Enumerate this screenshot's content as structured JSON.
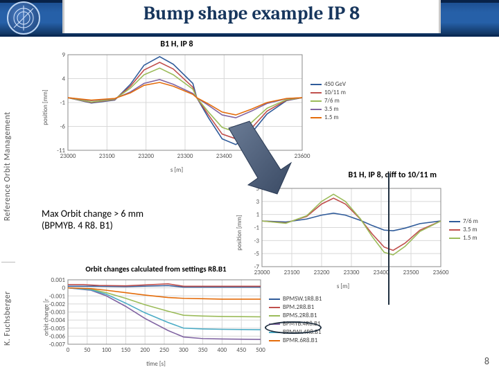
{
  "title": "Bump shape example IP 8",
  "side_top": "Reference Orbit Management",
  "side_bottom": "K. Fuchsberger",
  "page_no": "8",
  "note_line1": "Max Orbit change > 6 mm",
  "note_line2": "(BPMYB. 4 R8. B1)",
  "chart1": {
    "title": "B1 H, IP 8",
    "ylabel": "position [mm]",
    "xlabel": "s [m]",
    "xlim": [
      23000,
      23600
    ],
    "xtick_step": 100,
    "ylim": [
      -11,
      9
    ],
    "yticks": [
      -11,
      -6,
      -1,
      4,
      9
    ],
    "grid_color": "#d8d8d8",
    "bg": "#ffffff",
    "title_fontsize": 12,
    "tick_fontsize": 9,
    "series": [
      {
        "name": "450 GeV",
        "color": "#2f5b9a",
        "pts": [
          [
            23000,
            0
          ],
          [
            23060,
            -1.1
          ],
          [
            23120,
            -0.5
          ],
          [
            23160,
            2.8
          ],
          [
            23195,
            6.8
          ],
          [
            23235,
            8.6
          ],
          [
            23270,
            7.0
          ],
          [
            23320,
            3.0
          ],
          [
            23330,
            0
          ],
          [
            23360,
            -4.2
          ],
          [
            23395,
            -8.6
          ],
          [
            23430,
            -9.8
          ],
          [
            23470,
            -7.4
          ],
          [
            23510,
            -3.4
          ],
          [
            23560,
            -0.6
          ],
          [
            23600,
            0
          ]
        ]
      },
      {
        "name": "10/11 m",
        "color": "#c0504d",
        "pts": [
          [
            23000,
            0
          ],
          [
            23060,
            -1.0
          ],
          [
            23120,
            -0.4
          ],
          [
            23160,
            2.4
          ],
          [
            23195,
            5.8
          ],
          [
            23235,
            7.4
          ],
          [
            23270,
            6.0
          ],
          [
            23320,
            2.2
          ],
          [
            23330,
            0
          ],
          [
            23360,
            -3.6
          ],
          [
            23395,
            -7.6
          ],
          [
            23430,
            -8.6
          ],
          [
            23470,
            -6.4
          ],
          [
            23510,
            -2.8
          ],
          [
            23560,
            -0.5
          ],
          [
            23600,
            0
          ]
        ]
      },
      {
        "name": "7/6 m",
        "color": "#9bbb59",
        "pts": [
          [
            23000,
            0
          ],
          [
            23060,
            -0.9
          ],
          [
            23120,
            -0.3
          ],
          [
            23160,
            2.0
          ],
          [
            23195,
            4.8
          ],
          [
            23235,
            6.2
          ],
          [
            23270,
            4.8
          ],
          [
            23320,
            1.8
          ],
          [
            23330,
            0
          ],
          [
            23360,
            -3.0
          ],
          [
            23395,
            -6.2
          ],
          [
            23430,
            -7.2
          ],
          [
            23470,
            -5.2
          ],
          [
            23510,
            -2.2
          ],
          [
            23560,
            -0.4
          ],
          [
            23600,
            0
          ]
        ]
      },
      {
        "name": "3.5 m",
        "color": "#8064a2",
        "pts": [
          [
            23000,
            0
          ],
          [
            23060,
            -0.6
          ],
          [
            23120,
            -0.2
          ],
          [
            23160,
            1.2
          ],
          [
            23195,
            3.0
          ],
          [
            23235,
            3.8
          ],
          [
            23270,
            2.8
          ],
          [
            23320,
            0.9
          ],
          [
            23330,
            0
          ],
          [
            23360,
            -1.6
          ],
          [
            23395,
            -3.6
          ],
          [
            23430,
            -4.2
          ],
          [
            23470,
            -2.8
          ],
          [
            23510,
            -1.2
          ],
          [
            23560,
            -0.2
          ],
          [
            23600,
            0
          ]
        ]
      },
      {
        "name": "1.5 m",
        "color": "#e46c0a",
        "pts": [
          [
            23000,
            0
          ],
          [
            23060,
            -0.5
          ],
          [
            23120,
            -0.15
          ],
          [
            23160,
            1.0
          ],
          [
            23195,
            2.6
          ],
          [
            23235,
            3.2
          ],
          [
            23270,
            2.4
          ],
          [
            23320,
            0.7
          ],
          [
            23330,
            0
          ],
          [
            23360,
            -1.3
          ],
          [
            23395,
            -3.0
          ],
          [
            23430,
            -3.6
          ],
          [
            23470,
            -2.4
          ],
          [
            23510,
            -1.0
          ],
          [
            23560,
            -0.15
          ],
          [
            23600,
            0
          ]
        ]
      }
    ]
  },
  "chart2": {
    "title": "B1 H, IP 8, diff to 10/11 m",
    "ylabel": "position [mm]",
    "xlabel": "s [m]",
    "xlim": [
      23000,
      23600
    ],
    "xtick_step": 100,
    "ylim": [
      -7,
      5
    ],
    "yticks": [
      -7,
      -5,
      -3,
      -1,
      1,
      3,
      5
    ],
    "grid_color": "#d8d8d8",
    "series": [
      {
        "name": "7/6 m",
        "color": "#2f5b9a",
        "pts": [
          [
            23000,
            0
          ],
          [
            23080,
            -0.15
          ],
          [
            23150,
            0.3
          ],
          [
            23200,
            0.9
          ],
          [
            23240,
            1.2
          ],
          [
            23280,
            0.9
          ],
          [
            23330,
            0.1
          ],
          [
            23370,
            -0.7
          ],
          [
            23410,
            -1.4
          ],
          [
            23440,
            -1.5
          ],
          [
            23480,
            -1.1
          ],
          [
            23530,
            -0.4
          ],
          [
            23600,
            0
          ]
        ]
      },
      {
        "name": "3.5 m",
        "color": "#c0504d",
        "pts": [
          [
            23000,
            0
          ],
          [
            23080,
            -0.3
          ],
          [
            23150,
            0.7
          ],
          [
            23200,
            2.6
          ],
          [
            23240,
            3.5
          ],
          [
            23280,
            2.6
          ],
          [
            23330,
            0.3
          ],
          [
            23370,
            -2.0
          ],
          [
            23410,
            -4.0
          ],
          [
            23440,
            -4.5
          ],
          [
            23480,
            -3.4
          ],
          [
            23530,
            -1.4
          ],
          [
            23600,
            0
          ]
        ]
      },
      {
        "name": "1.5 m",
        "color": "#9bbb59",
        "pts": [
          [
            23000,
            0
          ],
          [
            23080,
            -0.35
          ],
          [
            23150,
            0.8
          ],
          [
            23200,
            3.0
          ],
          [
            23240,
            4.1
          ],
          [
            23280,
            3.0
          ],
          [
            23330,
            0.35
          ],
          [
            23370,
            -2.4
          ],
          [
            23410,
            -4.8
          ],
          [
            23440,
            -5.2
          ],
          [
            23480,
            -3.9
          ],
          [
            23530,
            -1.6
          ],
          [
            23600,
            0
          ]
        ]
      }
    ]
  },
  "chart3": {
    "title": "Orbit changes calculated from settings R8.B1",
    "ylabel": "orbit change [r",
    "xlabel": "time [s]",
    "xlim": [
      0,
      500
    ],
    "xtick_step": 50,
    "ylim": [
      -0.007,
      0.001
    ],
    "yticks": [
      -0.007,
      -0.006,
      -0.005,
      -0.004,
      -0.003,
      -0.002,
      -0.001,
      0,
      0.001
    ],
    "grid_color": "#d8d8d8",
    "series": [
      {
        "name": "BPMSW.1R8.B1",
        "color": "#2f5b9a",
        "pts": [
          [
            0,
            0.0002
          ],
          [
            40,
            0.0002
          ],
          [
            80,
            0.0002
          ],
          [
            150,
            0.00015
          ],
          [
            260,
            0.00028
          ],
          [
            300,
            0.0001
          ],
          [
            500,
            0.0001
          ]
        ]
      },
      {
        "name": "BPM.2R8.B1",
        "color": "#c0504d",
        "pts": [
          [
            0,
            0.0004
          ],
          [
            40,
            0.0004
          ],
          [
            80,
            0.0003
          ],
          [
            150,
            0.00025
          ],
          [
            260,
            0.0005
          ],
          [
            300,
            0.0002
          ],
          [
            500,
            0.0002
          ]
        ]
      },
      {
        "name": "BPMS.2R8.B1",
        "color": "#9bbb59",
        "pts": [
          [
            0,
            0
          ],
          [
            60,
            -0.0002
          ],
          [
            100,
            -0.0006
          ],
          [
            150,
            -0.0013
          ],
          [
            200,
            -0.0021
          ],
          [
            260,
            -0.0029
          ],
          [
            300,
            -0.0034
          ],
          [
            350,
            -0.0035
          ],
          [
            400,
            -0.00355
          ],
          [
            500,
            -0.0036
          ]
        ]
      },
      {
        "name": "BPMYB.4R8.B1",
        "color": "#8064a2",
        "pts": [
          [
            0,
            0
          ],
          [
            60,
            -0.0003
          ],
          [
            100,
            -0.001
          ],
          [
            150,
            -0.0023
          ],
          [
            200,
            -0.0038
          ],
          [
            260,
            -0.0053
          ],
          [
            300,
            -0.0061
          ],
          [
            350,
            -0.0063
          ],
          [
            400,
            -0.00635
          ],
          [
            500,
            -0.0064
          ]
        ]
      },
      {
        "name": "BPMWI.4R8.B1",
        "color": "#4bacc6",
        "pts": [
          [
            0,
            0
          ],
          [
            60,
            -0.00025
          ],
          [
            100,
            -0.0008
          ],
          [
            150,
            -0.0019
          ],
          [
            200,
            -0.0031
          ],
          [
            260,
            -0.0043
          ],
          [
            300,
            -0.005
          ],
          [
            350,
            -0.0051
          ],
          [
            400,
            -0.00515
          ],
          [
            500,
            -0.0052
          ]
        ]
      },
      {
        "name": "BPMR.6R8.B1",
        "color": "#e46c0a",
        "pts": [
          [
            0,
            0
          ],
          [
            60,
            -0.0001
          ],
          [
            100,
            -0.0003
          ],
          [
            150,
            -0.0006
          ],
          [
            200,
            -0.0009
          ],
          [
            260,
            -0.0012
          ],
          [
            300,
            -0.0013
          ],
          [
            350,
            -0.00135
          ],
          [
            400,
            -0.0014
          ],
          [
            500,
            -0.0014
          ]
        ]
      }
    ]
  }
}
